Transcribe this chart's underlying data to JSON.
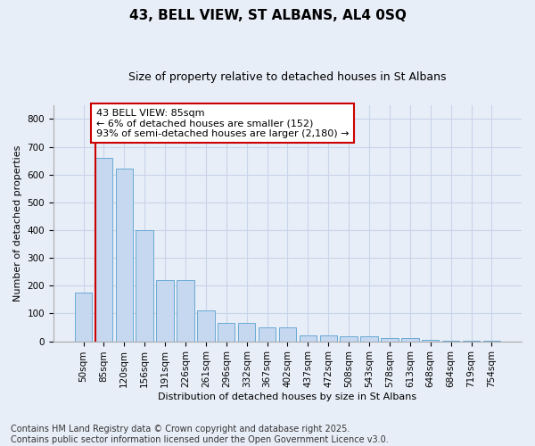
{
  "title": "43, BELL VIEW, ST ALBANS, AL4 0SQ",
  "subtitle": "Size of property relative to detached houses in St Albans",
  "xlabel": "Distribution of detached houses by size in St Albans",
  "ylabel": "Number of detached properties",
  "categories": [
    "50sqm",
    "85sqm",
    "120sqm",
    "156sqm",
    "191sqm",
    "226sqm",
    "261sqm",
    "296sqm",
    "332sqm",
    "367sqm",
    "402sqm",
    "437sqm",
    "472sqm",
    "508sqm",
    "543sqm",
    "578sqm",
    "613sqm",
    "648sqm",
    "684sqm",
    "719sqm",
    "754sqm"
  ],
  "values": [
    175,
    660,
    620,
    400,
    220,
    220,
    110,
    65,
    65,
    50,
    50,
    20,
    20,
    17,
    17,
    10,
    10,
    5,
    3,
    3,
    3
  ],
  "bar_color": "#c5d8f0",
  "bar_edge_color": "#6aaad4",
  "highlight_index": 1,
  "highlight_line_color": "#cc0000",
  "annotation_text": "43 BELL VIEW: 85sqm\n← 6% of detached houses are smaller (152)\n93% of semi-detached houses are larger (2,180) →",
  "annotation_box_color": "#ffffff",
  "annotation_box_edge_color": "#cc0000",
  "ylim": [
    0,
    850
  ],
  "yticks": [
    0,
    100,
    200,
    300,
    400,
    500,
    600,
    700,
    800
  ],
  "grid_color": "#c8d4e8",
  "background_color": "#e8eef8",
  "plot_background": "#e8eef8",
  "footer_line1": "Contains HM Land Registry data © Crown copyright and database right 2025.",
  "footer_line2": "Contains public sector information licensed under the Open Government Licence v3.0.",
  "title_fontsize": 11,
  "subtitle_fontsize": 9,
  "axis_label_fontsize": 8,
  "tick_fontsize": 7.5,
  "footer_fontsize": 7,
  "annotation_fontsize": 8
}
